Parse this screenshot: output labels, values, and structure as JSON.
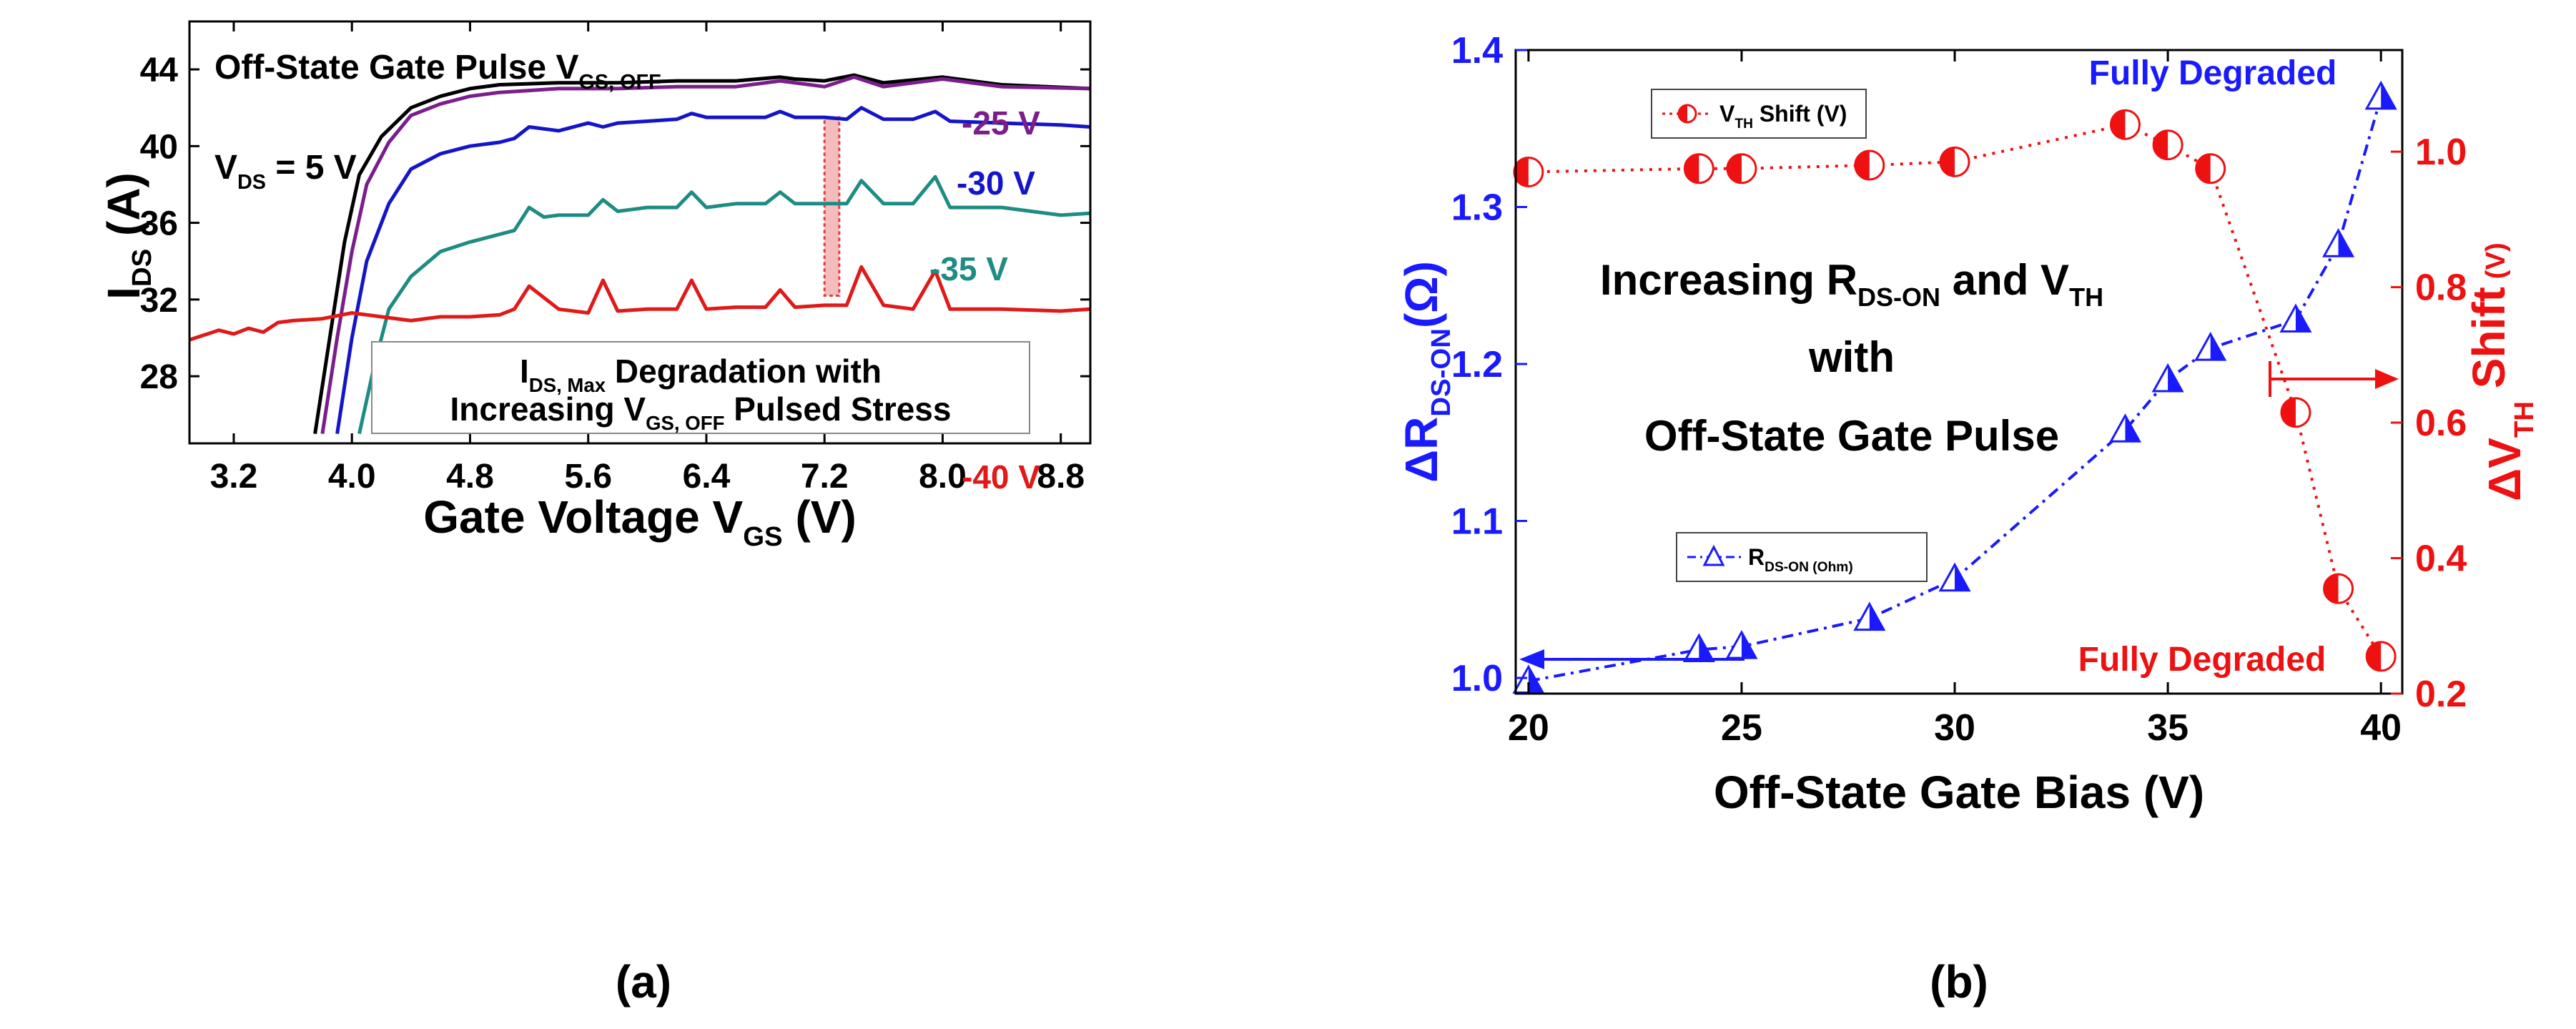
{
  "chart_data": [
    {
      "type": "line",
      "panel_label": "(a)",
      "ylabel": "I",
      "ylabel_sub": "DS",
      "ylabel_unit": " (A)",
      "xlabel": "Gate Voltage V",
      "xlabel_sub": "GS",
      "xlabel_unit": " (V)",
      "xlim": [
        2.9,
        9.0
      ],
      "ylim": [
        24.5,
        46.5
      ],
      "xticks": [
        "3.2",
        "4.0",
        "4.8",
        "5.6",
        "6.4",
        "7.2",
        "8.0",
        "8.8"
      ],
      "yticks": [
        "28",
        "32",
        "36",
        "40",
        "44"
      ],
      "annotations": {
        "top_title": "Off-State Gate Pulse V",
        "top_title_sub": "GS, OFF",
        "vds": "V",
        "vds_sub": "DS",
        "vds_value": " = 5 V",
        "box_line1_a": "I",
        "box_line1_sub": "DS, Max",
        "box_line1_b": " Degradation with",
        "box_line2_a": "Increasing V",
        "box_line2_sub": "GS, OFF",
        "box_line2_b": " Pulsed Stress"
      },
      "series": [
        {
          "label": "",
          "color": "#000000",
          "x": [
            3.75,
            3.85,
            3.95,
            4.05,
            4.2,
            4.4,
            4.6,
            4.8,
            5.0,
            5.4,
            5.8,
            6.2,
            6.6,
            6.9,
            7.0,
            7.2,
            7.4,
            7.6,
            8.0,
            8.4,
            9.0
          ],
          "y": [
            25.0,
            30.0,
            35.0,
            38.5,
            40.5,
            42.0,
            42.6,
            43.0,
            43.2,
            43.3,
            43.3,
            43.4,
            43.4,
            43.6,
            43.5,
            43.4,
            43.7,
            43.3,
            43.6,
            43.2,
            43.0
          ]
        },
        {
          "label": "-25 V",
          "color": "#7a1e8c",
          "x": [
            3.8,
            3.9,
            4.0,
            4.1,
            4.25,
            4.4,
            4.6,
            4.8,
            5.0,
            5.4,
            5.8,
            6.2,
            6.6,
            6.9,
            7.2,
            7.4,
            7.6,
            8.0,
            8.4,
            9.0
          ],
          "y": [
            25.0,
            30.0,
            34.5,
            38.0,
            40.2,
            41.6,
            42.2,
            42.6,
            42.8,
            43.0,
            43.0,
            43.1,
            43.1,
            43.4,
            43.1,
            43.6,
            43.1,
            43.5,
            43.1,
            43.0
          ]
        },
        {
          "label": "-30 V",
          "color": "#1515c8",
          "x": [
            3.9,
            4.0,
            4.1,
            4.25,
            4.4,
            4.6,
            4.8,
            5.0,
            5.1,
            5.2,
            5.4,
            5.6,
            5.7,
            5.8,
            6.0,
            6.2,
            6.3,
            6.4,
            6.6,
            6.8,
            6.9,
            7.0,
            7.2,
            7.35,
            7.45,
            7.6,
            7.8,
            7.95,
            8.05,
            8.4,
            8.8,
            9.0
          ],
          "y": [
            25.0,
            30.0,
            34.0,
            37.0,
            38.8,
            39.6,
            40.0,
            40.2,
            40.4,
            41.0,
            40.8,
            41.2,
            41.0,
            41.2,
            41.3,
            41.4,
            41.7,
            41.5,
            41.5,
            41.5,
            41.8,
            41.5,
            41.5,
            41.4,
            42.0,
            41.4,
            41.4,
            41.8,
            41.3,
            41.2,
            41.1,
            41.0
          ]
        },
        {
          "label": "-35 V",
          "color": "#1e8c82",
          "x": [
            4.05,
            4.15,
            4.25,
            4.4,
            4.6,
            4.8,
            5.0,
            5.1,
            5.2,
            5.3,
            5.4,
            5.6,
            5.7,
            5.8,
            6.0,
            6.2,
            6.3,
            6.4,
            6.6,
            6.8,
            6.9,
            7.0,
            7.2,
            7.35,
            7.45,
            7.6,
            7.8,
            7.95,
            8.05,
            8.4,
            8.8,
            9.0
          ],
          "y": [
            25.0,
            28.5,
            31.5,
            33.2,
            34.5,
            35.0,
            35.4,
            35.6,
            36.8,
            36.3,
            36.4,
            36.4,
            37.2,
            36.6,
            36.8,
            36.8,
            37.6,
            36.8,
            37.0,
            37.0,
            37.6,
            37.0,
            37.0,
            37.0,
            38.2,
            37.0,
            37.0,
            38.4,
            36.8,
            36.8,
            36.4,
            36.5
          ]
        },
        {
          "label": "-40 V",
          "color": "#e01919",
          "x": [
            2.9,
            3.1,
            3.2,
            3.3,
            3.4,
            3.5,
            3.6,
            3.8,
            4.0,
            4.2,
            4.4,
            4.6,
            4.8,
            5.0,
            5.1,
            5.2,
            5.4,
            5.6,
            5.7,
            5.8,
            6.0,
            6.2,
            6.3,
            6.4,
            6.6,
            6.8,
            6.9,
            7.0,
            7.2,
            7.35,
            7.45,
            7.6,
            7.8,
            7.95,
            8.05,
            8.4,
            8.8,
            9.0
          ],
          "y": [
            29.9,
            30.4,
            30.2,
            30.5,
            30.3,
            30.8,
            30.9,
            31.0,
            31.3,
            31.1,
            30.9,
            31.1,
            31.1,
            31.2,
            31.5,
            32.7,
            31.5,
            31.3,
            33.0,
            31.4,
            31.5,
            31.5,
            33.0,
            31.5,
            31.6,
            31.6,
            32.5,
            31.6,
            31.7,
            31.7,
            33.7,
            31.7,
            31.5,
            33.5,
            31.5,
            31.5,
            31.4,
            31.5
          ]
        }
      ],
      "highlight_box": {
        "x": [
          7.2,
          7.3
        ],
        "y": [
          32.2,
          41.5
        ],
        "color": "#e04040"
      }
    },
    {
      "type": "scatter",
      "panel_label": "(b)",
      "xlabel": "Off-State Gate Bias (V)",
      "ylabel_left": "ΔR",
      "ylabel_left_sub": "DS-ON",
      "ylabel_left_unit": "(Ω)",
      "ylabel_right": "ΔV",
      "ylabel_right_sub": "TH",
      "ylabel_right_unit": " Shift",
      "ylabel_right_sup": " (V)",
      "xlim": [
        19.7,
        40.5
      ],
      "ylim_left": [
        0.99,
        1.4
      ],
      "ylim_right": [
        0.2,
        1.15
      ],
      "xticks": [
        "20",
        "25",
        "30",
        "35",
        "40"
      ],
      "yticks_left": [
        "1.0",
        "1.1",
        "1.2",
        "1.3",
        "1.4"
      ],
      "yticks_right": [
        "0.2",
        "0.4",
        "0.6",
        "0.8",
        "1.0"
      ],
      "series": [
        {
          "label": "R",
          "label_sub": "DS-ON (Ohm)",
          "axis": "left",
          "color": "#1a1aff",
          "marker": "triangle",
          "x": [
            20,
            24,
            25,
            28,
            30,
            34,
            35,
            36,
            38,
            39,
            40
          ],
          "y": [
            0.998,
            1.018,
            1.02,
            1.038,
            1.063,
            1.158,
            1.19,
            1.21,
            1.228,
            1.276,
            1.37
          ]
        },
        {
          "label": "V",
          "label_sub": "TH",
          "label_rest": " Shift (V)",
          "axis": "right",
          "color": "#ee1111",
          "marker": "circle",
          "x": [
            20,
            24,
            25,
            28,
            30,
            34,
            35,
            36,
            38,
            39,
            40
          ],
          "y": [
            0.97,
            0.975,
            0.975,
            0.98,
            0.985,
            1.04,
            1.01,
            0.975,
            0.615,
            0.355,
            0.255
          ]
        }
      ],
      "annotations": {
        "center_line1_a": "Increasing R",
        "center_line1_sub1": "DS-ON",
        "center_line1_b": " and V",
        "center_line1_sub2": "TH",
        "center_line2": "with",
        "center_line3": "Off-State Gate Pulse",
        "fully_degraded_top": "Fully Degraded",
        "fully_degraded_bottom": "Fully Degraded"
      }
    }
  ]
}
